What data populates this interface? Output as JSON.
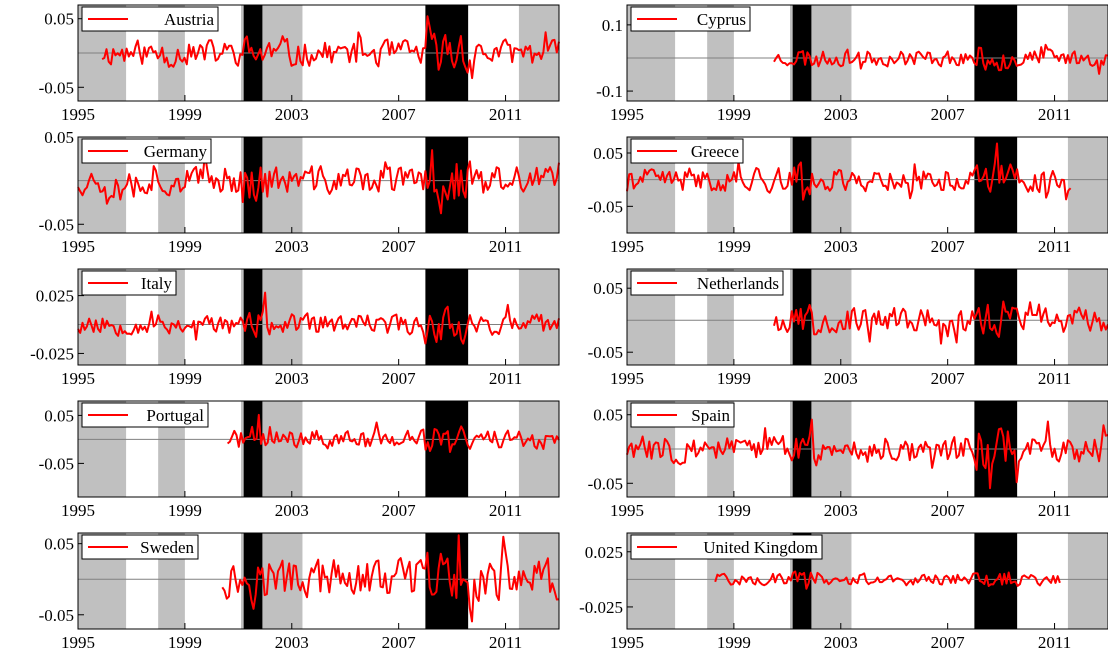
{
  "chart_data": [
    {
      "type": "line",
      "series": [
        {
          "name": "Austria",
          "seed": 11,
          "amp": 0.017
        }
      ],
      "x_start": 1995,
      "x_end": 2013,
      "data_start": 1995.9,
      "data_end": 2013,
      "yticks": [
        "0.05",
        "-0.05"
      ],
      "ytick_values": [
        0.05,
        -0.05
      ],
      "ylim": [
        -0.07,
        0.07
      ],
      "xticks": [
        "1995",
        "1999",
        "2003",
        "2007",
        "2011"
      ]
    },
    {
      "type": "line",
      "series": [
        {
          "name": "Cyprus",
          "seed": 23,
          "amp": 0.022
        }
      ],
      "x_start": 1995,
      "x_end": 2013,
      "data_start": 2000.5,
      "data_end": 2013,
      "yticks": [
        "0.1",
        "-0.1"
      ],
      "ytick_values": [
        0.1,
        -0.1
      ],
      "ylim": [
        -0.13,
        0.16
      ],
      "xticks": [
        "1995",
        "1999",
        "2003",
        "2007",
        "2011"
      ]
    },
    {
      "type": "line",
      "series": [
        {
          "name": "Germany",
          "seed": 37,
          "amp": 0.015
        }
      ],
      "x_start": 1995,
      "x_end": 2013,
      "data_start": 1995,
      "data_end": 2013,
      "yticks": [
        "0.05",
        "-0.05"
      ],
      "ytick_values": [
        0.05,
        -0.05
      ],
      "ylim": [
        -0.06,
        0.05
      ],
      "xticks": [
        "1995",
        "1999",
        "2003",
        "2007",
        "2011"
      ]
    },
    {
      "type": "line",
      "series": [
        {
          "name": "Greece",
          "seed": 41,
          "amp": 0.02
        }
      ],
      "x_start": 1995,
      "x_end": 2013,
      "data_start": 1995,
      "data_end": 2011.6,
      "yticks": [
        "0.05",
        "-0.05"
      ],
      "ytick_values": [
        0.05,
        -0.05
      ],
      "ylim": [
        -0.1,
        0.08
      ],
      "xticks": [
        "1995",
        "1999",
        "2003",
        "2007",
        "2011"
      ]
    },
    {
      "type": "line",
      "series": [
        {
          "name": "Italy",
          "seed": 53,
          "amp": 0.008
        }
      ],
      "x_start": 1995,
      "x_end": 2013,
      "data_start": 1995,
      "data_end": 2013,
      "yticks": [
        "0.025",
        "-0.025"
      ],
      "ytick_values": [
        0.025,
        -0.025
      ],
      "ylim": [
        -0.035,
        0.048
      ],
      "xticks": [
        "1995",
        "1999",
        "2003",
        "2007",
        "2011"
      ]
    },
    {
      "type": "line",
      "series": [
        {
          "name": "Netherlands",
          "seed": 67,
          "amp": 0.018
        }
      ],
      "x_start": 1995,
      "x_end": 2013,
      "data_start": 2000.5,
      "data_end": 2013,
      "yticks": [
        "0.05",
        "-0.05"
      ],
      "ytick_values": [
        0.05,
        -0.05
      ],
      "ylim": [
        -0.07,
        0.08
      ],
      "xticks": [
        "1995",
        "1999",
        "2003",
        "2007",
        "2011"
      ]
    },
    {
      "type": "line",
      "series": [
        {
          "name": "Portugal",
          "seed": 71,
          "amp": 0.018
        }
      ],
      "x_start": 1995,
      "x_end": 2013,
      "data_start": 2000.6,
      "data_end": 2013,
      "yticks": [
        "0.05",
        "-0.05"
      ],
      "ytick_values": [
        0.05,
        -0.05
      ],
      "ylim": [
        -0.12,
        0.08
      ],
      "xticks": [
        "1995",
        "1999",
        "2003",
        "2007",
        "2011"
      ]
    },
    {
      "type": "line",
      "series": [
        {
          "name": "Spain",
          "seed": 83,
          "amp": 0.018
        }
      ],
      "x_start": 1995,
      "x_end": 2013,
      "data_start": 1995,
      "data_end": 2013,
      "yticks": [
        "0.05",
        "-0.05"
      ],
      "ytick_values": [
        0.05,
        -0.05
      ],
      "ylim": [
        -0.07,
        0.07
      ],
      "xticks": [
        "1995",
        "1999",
        "2003",
        "2007",
        "2011"
      ]
    },
    {
      "type": "line",
      "series": [
        {
          "name": "Sweden",
          "seed": 97,
          "amp": 0.025
        }
      ],
      "x_start": 1995,
      "x_end": 2013,
      "data_start": 2000.4,
      "data_end": 2013,
      "yticks": [
        "0.05",
        "-0.05"
      ],
      "ytick_values": [
        0.05,
        -0.05
      ],
      "ylim": [
        -0.07,
        0.065
      ],
      "xticks": [
        "1995",
        "1999",
        "2003",
        "2007",
        "2011"
      ]
    },
    {
      "type": "line",
      "series": [
        {
          "name": "United Kingdom",
          "seed": 101,
          "amp": 0.005
        }
      ],
      "x_start": 1995,
      "x_end": 2013,
      "data_start": 1998.3,
      "data_end": 2011.2,
      "yticks": [
        "0.025",
        "-0.025"
      ],
      "ytick_values": [
        0.025,
        -0.025
      ],
      "ylim": [
        -0.045,
        0.042
      ],
      "xticks": [
        "1995",
        "1999",
        "2003",
        "2007",
        "2011"
      ]
    }
  ],
  "shaded_periods": [
    {
      "kind": "grey",
      "start": 1995,
      "end": 1996.8
    },
    {
      "kind": "grey",
      "start": 1998.0,
      "end": 1999.0
    },
    {
      "kind": "grey",
      "start": 2001.1,
      "end": 2003.4
    },
    {
      "kind": "grey",
      "start": 2011.5,
      "end": 2013.0
    },
    {
      "kind": "black",
      "start": 2001.2,
      "end": 2001.9
    },
    {
      "kind": "black",
      "start": 2008.0,
      "end": 2009.6
    }
  ],
  "colors": {
    "line": "#ff0000",
    "grey": "#c0c0c0",
    "black": "#000000",
    "zero": "#808080",
    "axis": "#000000"
  }
}
